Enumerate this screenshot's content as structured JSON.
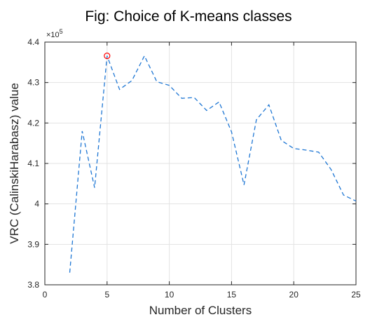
{
  "title": "Fig: Choice of  K-means classes",
  "chart_data": {
    "type": "line",
    "title": "Fig: Choice of  K-means classes",
    "xlabel": "Number of Clusters",
    "ylabel": "VRC (CalinskiHarabasz) value",
    "y_exponent_base": "×10",
    "y_exponent_power": "5",
    "xlim": [
      0,
      25
    ],
    "ylim": [
      3.8,
      4.4
    ],
    "x_ticks": [
      0,
      5,
      10,
      15,
      20,
      25
    ],
    "y_ticks": [
      3.8,
      3.9,
      4.0,
      4.1,
      4.2,
      4.3,
      4.4
    ],
    "x_tick_labels": [
      "0",
      "5",
      "10",
      "15",
      "20",
      "25"
    ],
    "y_tick_labels": [
      "3.8",
      "3.9",
      "4",
      "4.1",
      "4.2",
      "4.3",
      "4.4"
    ],
    "grid": true,
    "series": [
      {
        "color": "#1f77d4",
        "line_style": "dashed",
        "x": [
          2,
          3,
          4,
          5,
          6,
          7,
          8,
          9,
          10,
          11,
          12,
          13,
          14,
          15,
          16,
          17,
          18,
          19,
          20,
          21,
          22,
          23,
          24,
          25
        ],
        "y": [
          3.83,
          4.18,
          4.04,
          4.366,
          4.283,
          4.305,
          4.366,
          4.302,
          4.293,
          4.261,
          4.263,
          4.231,
          4.252,
          4.178,
          4.047,
          4.208,
          4.245,
          4.157,
          4.137,
          4.133,
          4.128,
          4.085,
          4.022,
          4.007
        ]
      }
    ],
    "highlight": {
      "x": 5,
      "y": 4.366,
      "marker": "circle",
      "color": "#ff0000"
    }
  }
}
